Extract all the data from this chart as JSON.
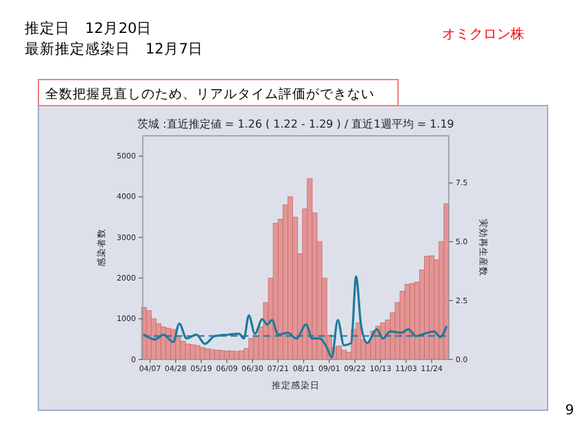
{
  "chart_data": {
    "type": "bar",
    "title": "茨城 :直近推定値 = 1.26 ( 1.22 - 1.29 ) / 直近1週平均 = 1.19",
    "annotations": [
      "推定日　12月20日",
      "最新推定感染日　12月7日",
      "オミクロン株",
      "全数把握見直しのため、リアルタイム評価ができない",
      "9"
    ],
    "xlabel": "推定感染日",
    "ylabel": "感染者数",
    "y2label": "実効再生産数",
    "xlim": [
      "--04-01",
      "--12-08"
    ],
    "xticks": [
      {
        "value": "--04-07",
        "label": "04/07"
      },
      {
        "value": "--04-28",
        "label": "04/28"
      },
      {
        "value": "--05-19",
        "label": "05/19"
      },
      {
        "value": "--06-09",
        "label": "06/09"
      },
      {
        "value": "--06-30",
        "label": "06/30"
      },
      {
        "value": "--07-21",
        "label": "07/21"
      },
      {
        "value": "--08-11",
        "label": "08/11"
      },
      {
        "value": "--09-01",
        "label": "09/01"
      },
      {
        "value": "--09-22",
        "label": "09/22"
      },
      {
        "value": "--10-13",
        "label": "10/13"
      },
      {
        "value": "--11-03",
        "label": "11/03"
      },
      {
        "value": "--11-24",
        "label": "11/24"
      }
    ],
    "ylim": [
      0,
      5500
    ],
    "yticks": [
      0,
      1000,
      2000,
      3000,
      4000,
      5000
    ],
    "y2lim": [
      0,
      9.5
    ],
    "y2ticks": [
      {
        "value": 0,
        "label": "0.0"
      },
      {
        "value": 2.5,
        "label": "2.5"
      },
      {
        "value": 5,
        "label": "5.0"
      },
      {
        "value": 7.5,
        "label": "7.5"
      }
    ],
    "grid": false,
    "ref_lines": [
      {
        "axis": "y2",
        "value": 1,
        "color": "#1f7a9a",
        "line_style": "dashed"
      }
    ],
    "series": [
      {
        "color": "#e39595",
        "x": [
          "--04-02",
          "--04-06",
          "--04-10",
          "--04-14",
          "--04-18",
          "--04-22",
          "--04-26",
          "--04-30",
          "--05-04",
          "--05-08",
          "--05-12",
          "--05-16",
          "--05-20",
          "--05-24",
          "--05-28",
          "--06-01",
          "--06-05",
          "--06-09",
          "--06-13",
          "--06-17",
          "--06-21",
          "--06-25",
          "--06-29",
          "--07-03",
          "--07-07",
          "--07-11",
          "--07-15",
          "--07-19",
          "--07-23",
          "--07-27",
          "--07-31",
          "--08-04",
          "--08-08",
          "--08-12",
          "--08-16",
          "--08-20",
          "--08-24",
          "--08-28",
          "--09-01",
          "--09-05",
          "--09-09",
          "--09-13",
          "--09-17",
          "--09-21",
          "--09-25",
          "--09-29",
          "--10-03",
          "--10-07",
          "--10-11",
          "--10-15",
          "--10-19",
          "--10-23",
          "--10-27",
          "--10-31",
          "--11-04",
          "--11-08",
          "--11-12",
          "--11-16",
          "--11-20",
          "--11-24",
          "--11-28",
          "--12-02",
          "--12-06"
        ],
        "values": [
          1280,
          1200,
          1000,
          880,
          800,
          770,
          740,
          550,
          450,
          380,
          360,
          340,
          290,
          260,
          240,
          230,
          220,
          210,
          210,
          200,
          210,
          270,
          520,
          560,
          800,
          1400,
          2000,
          3350,
          3450,
          3800,
          4000,
          3500,
          2600,
          3700,
          4450,
          3600,
          2900,
          2000,
          600,
          300,
          330,
          230,
          180,
          740,
          900,
          480,
          420,
          700,
          820,
          900,
          970,
          1150,
          1400,
          1680,
          1850,
          1870,
          1900,
          2200,
          2540,
          2550,
          2450,
          2900,
          3830
        ]
      },
      {
        "type": "line",
        "axis": "y2",
        "color": "#1f7a9a",
        "marker": "none",
        "line_style": "solid",
        "x": [
          "--04-02",
          "--04-11",
          "--04-18",
          "--04-26",
          "--05-01",
          "--05-07",
          "--05-15",
          "--05-22",
          "--05-30",
          "--06-10",
          "--06-19",
          "--06-23",
          "--06-27",
          "--07-02",
          "--07-08",
          "--07-12",
          "--07-16",
          "--07-21",
          "--07-29",
          "--08-05",
          "--08-13",
          "--08-18",
          "--08-24",
          "--08-30",
          "--09-03",
          "--09-08",
          "--09-13",
          "--09-19",
          "--09-23",
          "--09-27",
          "--10-02",
          "--10-10",
          "--10-15",
          "--10-21",
          "--10-30",
          "--11-05",
          "--11-11",
          "--11-18",
          "--11-26",
          "--12-01",
          "--12-06"
        ],
        "values": [
          1.05,
          0.85,
          1.05,
          0.74,
          1.52,
          0.89,
          1.05,
          0.66,
          0.99,
          1.05,
          1.09,
          0.89,
          1.87,
          1.09,
          1.71,
          1.48,
          1.67,
          1.05,
          1.13,
          0.89,
          1.48,
          0.89,
          0.89,
          0.51,
          0.08,
          1.67,
          0.6,
          0.7,
          3.52,
          1.48,
          0.7,
          1.28,
          0.89,
          1.19,
          1.13,
          1.28,
          0.99,
          1.09,
          1.19,
          0.95,
          1.38
        ]
      }
    ]
  }
}
